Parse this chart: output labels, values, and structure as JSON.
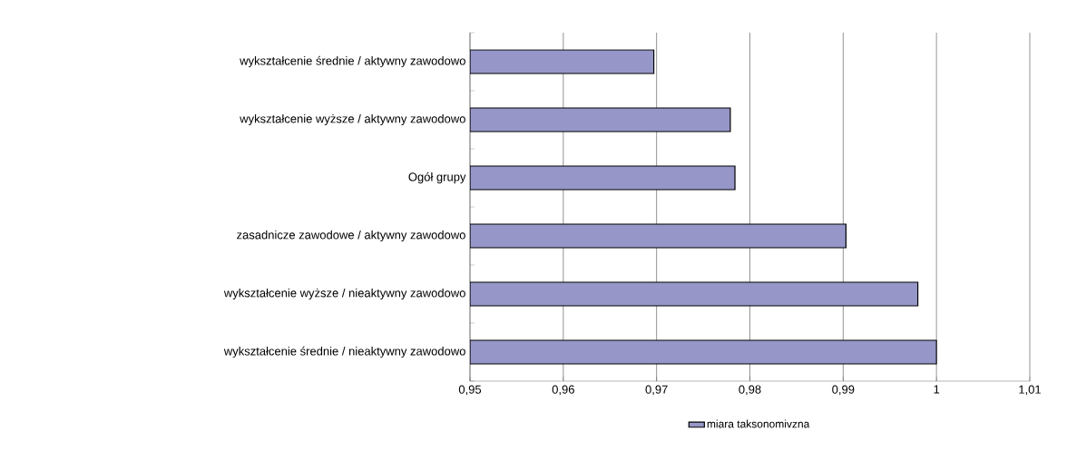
{
  "chart_data": {
    "type": "bar",
    "orientation": "horizontal",
    "categories": [
      "wykształcenie średnie / aktywny zawodowo",
      "wykształcenie wyższe / aktywny zawodowo",
      "Ogół grupy",
      "zasadnicze zawodowe / aktywny zawodowo",
      "wykształcenie wyższe / nieaktywny zawodowo",
      "wykształcenie średnie / nieaktywny zawodowo"
    ],
    "series": [
      {
        "name": "miara taksonomivzna",
        "color": "#9696c8",
        "values": [
          0.9697,
          0.9779,
          0.9784,
          0.9903,
          0.998,
          1.0
        ]
      }
    ],
    "xlim": [
      0.95,
      1.01
    ],
    "xticks": [
      {
        "value": 0.95,
        "label": "0,95"
      },
      {
        "value": 0.96,
        "label": "0,96"
      },
      {
        "value": 0.97,
        "label": "0,97"
      },
      {
        "value": 0.98,
        "label": "0,98"
      },
      {
        "value": 0.99,
        "label": "0,99"
      },
      1,
      {
        "value": 1.01,
        "label": "1,01"
      }
    ],
    "grid": "x",
    "legend": "bottom"
  }
}
